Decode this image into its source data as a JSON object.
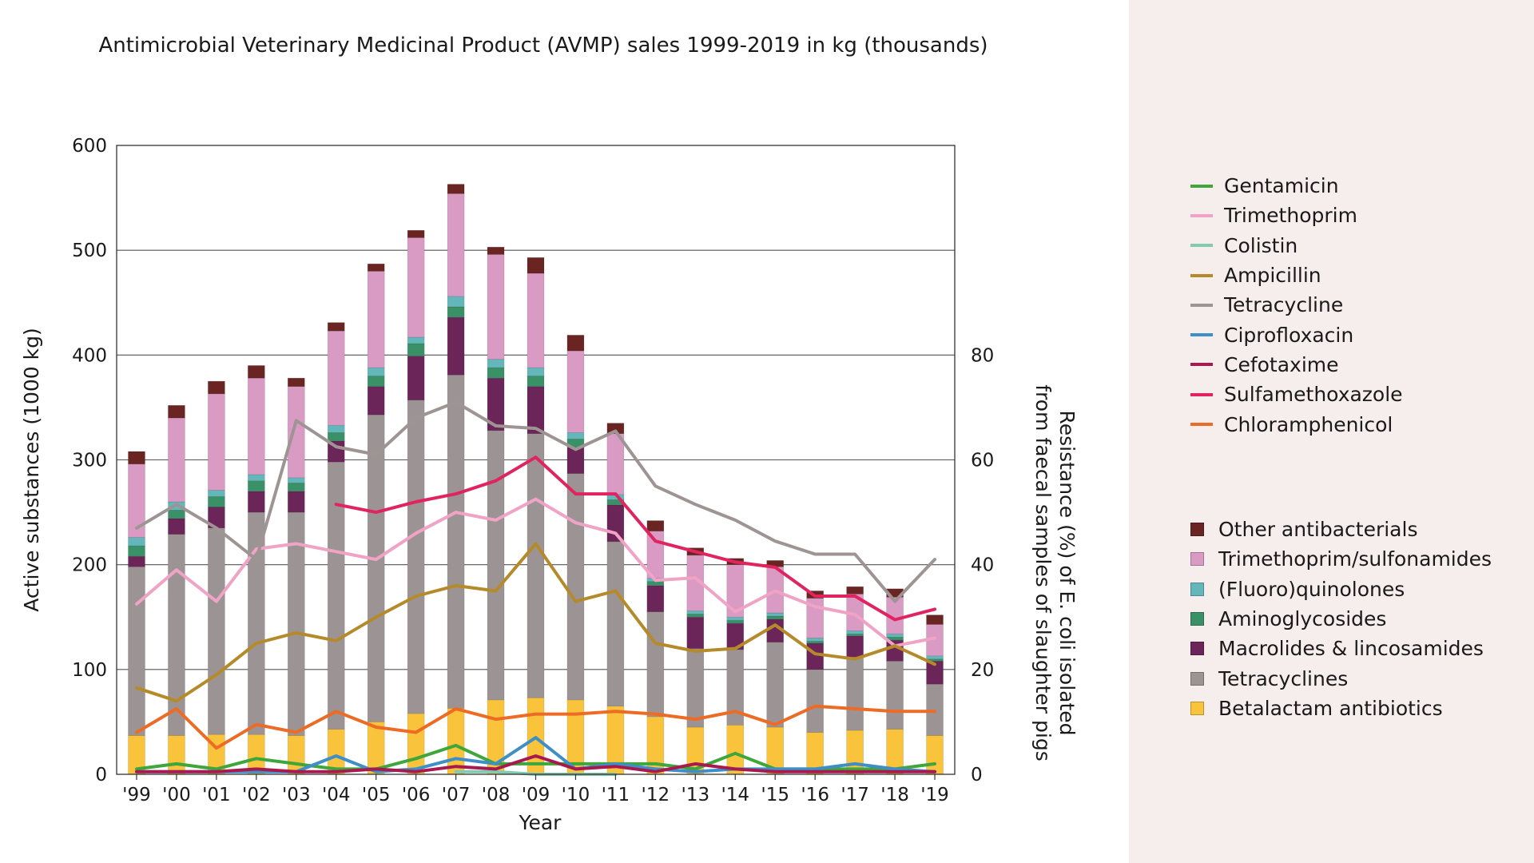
{
  "chart_data": {
    "type": "bar",
    "title": "Antimicrobial Veterinary Medicinal Product (AVMP) sales 1999-2019 in kg (thousands)",
    "xlabel": "Year",
    "ylabel": "Active substances (1000 kg)",
    "ylabel_right": [
      "Resistance (%) of E. coli isolated",
      "from faecal samples of slaughter pigs"
    ],
    "categories": [
      "'99",
      "'00",
      "'01",
      "'02",
      "'03",
      "'04",
      "'05",
      "'06",
      "'07",
      "'08",
      "'09",
      "'10",
      "'11",
      "'12",
      "'13",
      "'14",
      "'15",
      "'16",
      "'17",
      "'18",
      "'19"
    ],
    "ylim": [
      0,
      600
    ],
    "yticks": [
      "0",
      "100",
      "200",
      "300",
      "400",
      "500",
      "600"
    ],
    "ylim_right": [
      0,
      120
    ],
    "yticks_right": [
      "0",
      "20",
      "40",
      "60",
      "80"
    ],
    "grid": true,
    "bar_series": [
      {
        "name": "Betalactam antibiotics",
        "color": "#f9c33c",
        "values": [
          37,
          37,
          38,
          38,
          37,
          43,
          50,
          58,
          63,
          71,
          73,
          71,
          65,
          55,
          45,
          47,
          45,
          40,
          42,
          43,
          37
        ]
      },
      {
        "name": "Tetracyclines",
        "color": "#9c9494",
        "values": [
          161,
          192,
          197,
          212,
          213,
          255,
          293,
          299,
          318,
          257,
          252,
          216,
          157,
          100,
          75,
          72,
          81,
          60,
          70,
          65,
          49
        ]
      },
      {
        "name": "Macrolides & lincosamides",
        "color": "#6b2558",
        "values": [
          10,
          15,
          20,
          20,
          20,
          20,
          27,
          42,
          55,
          50,
          45,
          25,
          35,
          25,
          30,
          25,
          22,
          25,
          20,
          20,
          22
        ]
      },
      {
        "name": "Aminoglycosides",
        "color": "#3a9168",
        "values": [
          10,
          8,
          10,
          10,
          8,
          8,
          10,
          12,
          10,
          10,
          10,
          8,
          5,
          4,
          3,
          3,
          3,
          2,
          2,
          3,
          2
        ]
      },
      {
        "name": "(Fluoro)quinolones",
        "color": "#63b7bb",
        "values": [
          8,
          8,
          6,
          6,
          5,
          7,
          8,
          6,
          10,
          8,
          8,
          6,
          5,
          3,
          3,
          3,
          3,
          3,
          3,
          3,
          3
        ]
      },
      {
        "name": "Trimethoprim/sulfonamides",
        "color": "#d99ac3",
        "values": [
          70,
          80,
          92,
          92,
          87,
          90,
          92,
          95,
          98,
          100,
          90,
          78,
          58,
          45,
          53,
          50,
          44,
          38,
          35,
          35,
          30
        ]
      },
      {
        "name": "Other antibacterials",
        "color": "#6a2422",
        "values": [
          12,
          12,
          12,
          12,
          8,
          8,
          7,
          7,
          9,
          7,
          15,
          15,
          10,
          10,
          7,
          6,
          6,
          7,
          7,
          8,
          9
        ]
      }
    ],
    "line_series": [
      {
        "name": "Gentamicin",
        "color": "#3ea63b",
        "values": [
          1,
          2,
          1,
          3,
          2,
          1,
          1,
          3,
          5.5,
          2,
          2,
          2,
          2,
          2,
          1,
          4,
          1,
          1,
          1,
          1,
          2
        ]
      },
      {
        "name": "Trimethoprim",
        "color": "#f0a3c4",
        "values": [
          32.5,
          39,
          33,
          43,
          44,
          42.5,
          41,
          46,
          50,
          48.5,
          52.5,
          48,
          46,
          37,
          37.5,
          31,
          35,
          32,
          30.5,
          24.5,
          26
        ]
      },
      {
        "name": "Colistin",
        "color": "#82cbb0",
        "values": [
          null,
          null,
          null,
          null,
          null,
          null,
          null,
          null,
          0.5,
          0.5,
          0,
          0,
          0,
          null,
          null,
          null,
          null,
          null,
          null,
          null,
          null
        ]
      },
      {
        "name": "Ampicillin",
        "color": "#b58a2a",
        "values": [
          16.5,
          14,
          19,
          25,
          27,
          25.5,
          30,
          34,
          36,
          35,
          44,
          33,
          35,
          25,
          23.5,
          24,
          28.5,
          23,
          22,
          24.5,
          21
        ]
      },
      {
        "name": "Tetracycline",
        "color": "#9e9494",
        "values": [
          47,
          51.5,
          47,
          41,
          67.5,
          62.5,
          61,
          68,
          71,
          66.5,
          66,
          62,
          65.5,
          55,
          51.5,
          48.5,
          44.5,
          42,
          42,
          33,
          41
        ]
      },
      {
        "name": "Ciprofloxacin",
        "color": "#3f8fc7",
        "values": [
          0.5,
          0.5,
          0.5,
          0.5,
          0.5,
          3.5,
          0.5,
          1,
          3,
          2,
          7,
          1,
          2,
          1,
          0.5,
          1,
          1,
          1,
          2,
          1,
          0.5
        ]
      },
      {
        "name": "Cefotaxime",
        "color": "#a61a4f",
        "values": [
          0.5,
          0.5,
          0.5,
          1,
          0.5,
          0.5,
          1,
          0.5,
          1.5,
          1,
          3.5,
          1,
          1.5,
          0.5,
          2,
          1,
          0.5,
          0.5,
          0.5,
          0.5,
          0.5
        ]
      },
      {
        "name": "Sulfamethoxazole",
        "color": "#e0245f",
        "values": [
          null,
          null,
          null,
          null,
          null,
          51.5,
          50,
          52,
          53.5,
          56,
          60.5,
          53.5,
          53.5,
          44.5,
          42.5,
          40.5,
          39.5,
          34,
          34,
          29.5,
          31.5
        ]
      },
      {
        "name": "Chloramphenicol",
        "color": "#ec6b25",
        "values": [
          8,
          12.5,
          5,
          9.5,
          8,
          12,
          9,
          8,
          12.5,
          10.5,
          11.5,
          11.5,
          12,
          11.5,
          10.5,
          12,
          9.5,
          13,
          12.5,
          12,
          12
        ]
      }
    ]
  },
  "legend_lines": [
    "Gentamicin",
    "Trimethoprim",
    "Colistin",
    "Ampicillin",
    "Tetracycline",
    "Ciprofloxacin",
    "Cefotaxime",
    "Sulfamethoxazole",
    "Chloramphenicol"
  ],
  "legend_bars": [
    "Other antibacterials",
    "Trimethoprim/sulfonamides",
    "(Fluoro)quinolones",
    "Aminoglycosides",
    "Macrolides & lincosamides",
    "Tetracyclines",
    "Betalactam antibiotics"
  ]
}
